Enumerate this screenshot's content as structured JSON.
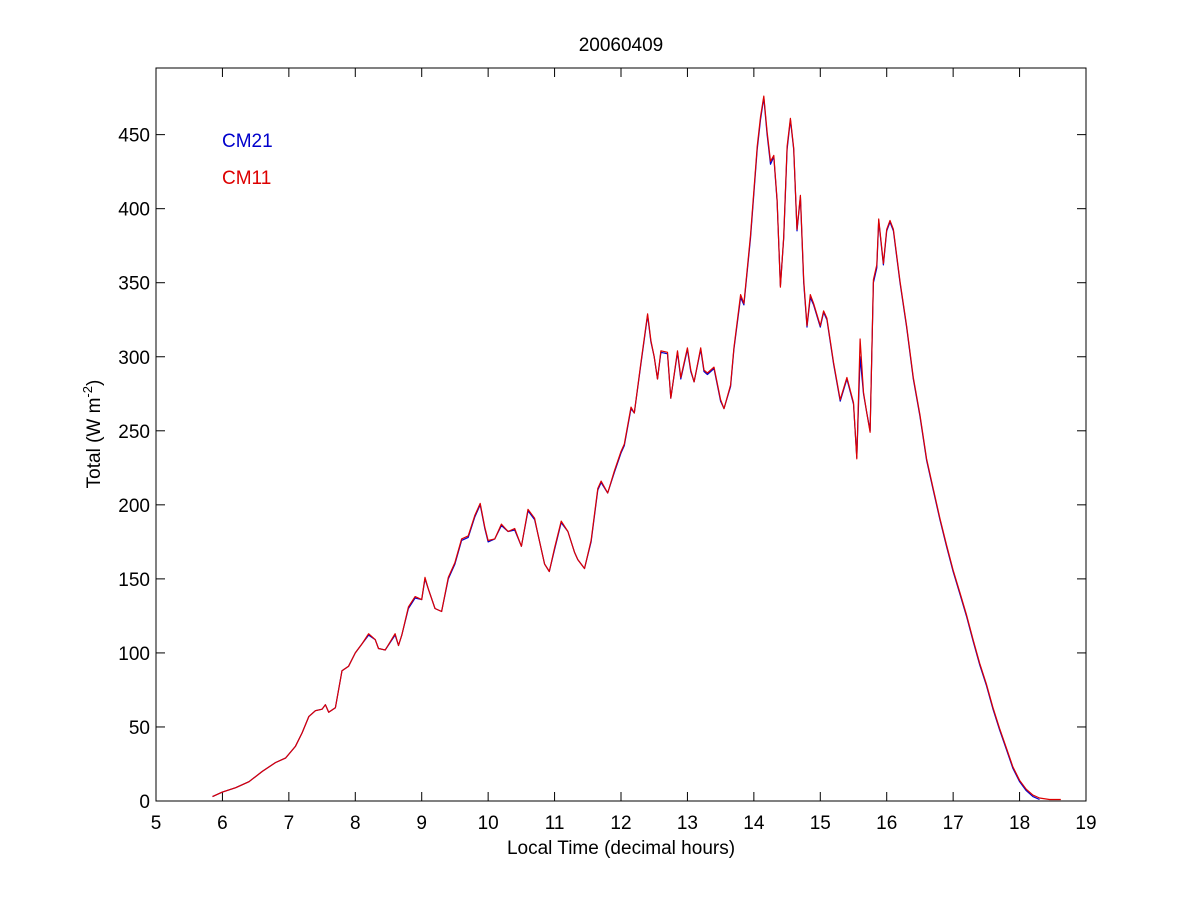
{
  "chart_data": {
    "type": "line",
    "title": "20060409",
    "xlabel": "Local Time (decimal hours)",
    "ylabel": "Total (W m",
    "ylabel_sup": "-2",
    "ylabel_suffix": ")",
    "xlim": [
      5,
      19
    ],
    "ylim": [
      0,
      495
    ],
    "xticks": [
      5,
      6,
      7,
      8,
      9,
      10,
      11,
      12,
      13,
      14,
      15,
      16,
      17,
      18,
      19
    ],
    "yticks": [
      0,
      50,
      100,
      150,
      200,
      250,
      300,
      350,
      400,
      450
    ],
    "grid": false,
    "legend_placement": "top-left",
    "series": [
      {
        "name": "CM21",
        "color": "#0000cc",
        "points": [
          [
            5.85,
            3
          ],
          [
            6.0,
            6
          ],
          [
            6.2,
            9
          ],
          [
            6.4,
            13
          ],
          [
            6.6,
            20
          ],
          [
            6.8,
            26
          ],
          [
            6.95,
            29
          ],
          [
            7.1,
            37
          ],
          [
            7.2,
            46
          ],
          [
            7.3,
            57
          ],
          [
            7.4,
            61
          ],
          [
            7.5,
            62
          ],
          [
            7.55,
            65
          ],
          [
            7.6,
            60
          ],
          [
            7.7,
            63
          ],
          [
            7.8,
            88
          ],
          [
            7.9,
            91
          ],
          [
            8.0,
            100
          ],
          [
            8.1,
            106
          ],
          [
            8.2,
            112
          ],
          [
            8.3,
            109
          ],
          [
            8.35,
            103
          ],
          [
            8.45,
            102
          ],
          [
            8.6,
            112
          ],
          [
            8.65,
            105
          ],
          [
            8.7,
            112
          ],
          [
            8.8,
            130
          ],
          [
            8.9,
            137
          ],
          [
            9.0,
            136
          ],
          [
            9.05,
            150
          ],
          [
            9.1,
            143
          ],
          [
            9.2,
            130
          ],
          [
            9.3,
            128
          ],
          [
            9.4,
            150
          ],
          [
            9.5,
            160
          ],
          [
            9.6,
            176
          ],
          [
            9.7,
            178
          ],
          [
            9.8,
            192
          ],
          [
            9.88,
            200
          ],
          [
            9.95,
            184
          ],
          [
            10.0,
            175
          ],
          [
            10.1,
            177
          ],
          [
            10.2,
            186
          ],
          [
            10.3,
            182
          ],
          [
            10.4,
            183
          ],
          [
            10.5,
            172
          ],
          [
            10.6,
            196
          ],
          [
            10.7,
            190
          ],
          [
            10.75,
            180
          ],
          [
            10.85,
            160
          ],
          [
            10.92,
            155
          ],
          [
            11.0,
            170
          ],
          [
            11.1,
            188
          ],
          [
            11.2,
            182
          ],
          [
            11.3,
            168
          ],
          [
            11.35,
            163
          ],
          [
            11.45,
            157
          ],
          [
            11.55,
            175
          ],
          [
            11.65,
            210
          ],
          [
            11.7,
            215
          ],
          [
            11.8,
            208
          ],
          [
            11.9,
            222
          ],
          [
            12.0,
            235
          ],
          [
            12.05,
            240
          ],
          [
            12.15,
            265
          ],
          [
            12.2,
            262
          ],
          [
            12.3,
            295
          ],
          [
            12.4,
            328
          ],
          [
            12.45,
            310
          ],
          [
            12.5,
            300
          ],
          [
            12.55,
            285
          ],
          [
            12.6,
            303
          ],
          [
            12.7,
            302
          ],
          [
            12.75,
            272
          ],
          [
            12.85,
            303
          ],
          [
            12.9,
            285
          ],
          [
            13.0,
            305
          ],
          [
            13.05,
            290
          ],
          [
            13.1,
            283
          ],
          [
            13.2,
            305
          ],
          [
            13.25,
            290
          ],
          [
            13.3,
            288
          ],
          [
            13.4,
            292
          ],
          [
            13.5,
            270
          ],
          [
            13.55,
            265
          ],
          [
            13.65,
            280
          ],
          [
            13.7,
            305
          ],
          [
            13.8,
            340
          ],
          [
            13.85,
            335
          ],
          [
            13.95,
            380
          ],
          [
            14.05,
            440
          ],
          [
            14.1,
            460
          ],
          [
            14.15,
            475
          ],
          [
            14.2,
            450
          ],
          [
            14.25,
            430
          ],
          [
            14.3,
            435
          ],
          [
            14.35,
            405
          ],
          [
            14.4,
            348
          ],
          [
            14.45,
            380
          ],
          [
            14.5,
            440
          ],
          [
            14.55,
            460
          ],
          [
            14.6,
            440
          ],
          [
            14.65,
            385
          ],
          [
            14.7,
            408
          ],
          [
            14.75,
            350
          ],
          [
            14.8,
            320
          ],
          [
            14.85,
            340
          ],
          [
            14.9,
            335
          ],
          [
            15.0,
            320
          ],
          [
            15.05,
            330
          ],
          [
            15.1,
            325
          ],
          [
            15.2,
            295
          ],
          [
            15.3,
            270
          ],
          [
            15.4,
            285
          ],
          [
            15.5,
            268
          ],
          [
            15.55,
            232
          ],
          [
            15.6,
            300
          ],
          [
            15.65,
            275
          ],
          [
            15.7,
            262
          ],
          [
            15.75,
            250
          ],
          [
            15.8,
            350
          ],
          [
            15.85,
            360
          ],
          [
            15.88,
            392
          ],
          [
            15.95,
            362
          ],
          [
            16.0,
            385
          ],
          [
            16.05,
            391
          ],
          [
            16.1,
            385
          ],
          [
            16.2,
            350
          ],
          [
            16.3,
            320
          ],
          [
            16.4,
            285
          ],
          [
            16.5,
            260
          ],
          [
            16.6,
            230
          ],
          [
            16.7,
            210
          ],
          [
            16.8,
            190
          ],
          [
            16.9,
            172
          ],
          [
            17.0,
            155
          ],
          [
            17.1,
            140
          ],
          [
            17.2,
            125
          ],
          [
            17.3,
            108
          ],
          [
            17.4,
            92
          ],
          [
            17.5,
            78
          ],
          [
            17.6,
            62
          ],
          [
            17.7,
            48
          ],
          [
            17.8,
            35
          ],
          [
            17.9,
            22
          ],
          [
            18.0,
            13
          ],
          [
            18.1,
            7
          ],
          [
            18.2,
            3
          ],
          [
            18.3,
            1
          ]
        ]
      },
      {
        "name": "CM11",
        "color": "#dd0000",
        "points": [
          [
            5.85,
            3
          ],
          [
            6.0,
            6
          ],
          [
            6.2,
            9
          ],
          [
            6.4,
            13
          ],
          [
            6.6,
            20
          ],
          [
            6.8,
            26
          ],
          [
            6.95,
            29
          ],
          [
            7.1,
            37
          ],
          [
            7.2,
            46
          ],
          [
            7.3,
            57
          ],
          [
            7.4,
            61
          ],
          [
            7.5,
            62
          ],
          [
            7.55,
            65
          ],
          [
            7.6,
            60
          ],
          [
            7.7,
            63
          ],
          [
            7.8,
            88
          ],
          [
            7.9,
            91
          ],
          [
            8.0,
            100
          ],
          [
            8.1,
            106
          ],
          [
            8.2,
            113
          ],
          [
            8.3,
            109
          ],
          [
            8.35,
            103
          ],
          [
            8.45,
            102
          ],
          [
            8.6,
            113
          ],
          [
            8.65,
            105
          ],
          [
            8.7,
            112
          ],
          [
            8.8,
            131
          ],
          [
            8.9,
            138
          ],
          [
            9.0,
            136
          ],
          [
            9.05,
            151
          ],
          [
            9.1,
            143
          ],
          [
            9.2,
            130
          ],
          [
            9.3,
            128
          ],
          [
            9.4,
            151
          ],
          [
            9.5,
            161
          ],
          [
            9.6,
            177
          ],
          [
            9.7,
            179
          ],
          [
            9.8,
            193
          ],
          [
            9.88,
            201
          ],
          [
            9.95,
            185
          ],
          [
            10.0,
            176
          ],
          [
            10.1,
            177
          ],
          [
            10.2,
            187
          ],
          [
            10.3,
            182
          ],
          [
            10.4,
            184
          ],
          [
            10.5,
            172
          ],
          [
            10.6,
            197
          ],
          [
            10.7,
            191
          ],
          [
            10.75,
            180
          ],
          [
            10.85,
            160
          ],
          [
            10.92,
            155
          ],
          [
            11.0,
            171
          ],
          [
            11.1,
            189
          ],
          [
            11.2,
            182
          ],
          [
            11.3,
            168
          ],
          [
            11.35,
            163
          ],
          [
            11.45,
            157
          ],
          [
            11.55,
            176
          ],
          [
            11.65,
            211
          ],
          [
            11.7,
            216
          ],
          [
            11.8,
            208
          ],
          [
            11.9,
            223
          ],
          [
            12.0,
            236
          ],
          [
            12.05,
            241
          ],
          [
            12.15,
            266
          ],
          [
            12.2,
            262
          ],
          [
            12.3,
            296
          ],
          [
            12.4,
            329
          ],
          [
            12.45,
            311
          ],
          [
            12.5,
            300
          ],
          [
            12.55,
            285
          ],
          [
            12.6,
            304
          ],
          [
            12.7,
            303
          ],
          [
            12.75,
            272
          ],
          [
            12.85,
            304
          ],
          [
            12.9,
            286
          ],
          [
            13.0,
            306
          ],
          [
            13.05,
            291
          ],
          [
            13.1,
            283
          ],
          [
            13.2,
            306
          ],
          [
            13.25,
            291
          ],
          [
            13.3,
            289
          ],
          [
            13.4,
            293
          ],
          [
            13.5,
            271
          ],
          [
            13.55,
            265
          ],
          [
            13.65,
            281
          ],
          [
            13.7,
            306
          ],
          [
            13.8,
            342
          ],
          [
            13.85,
            336
          ],
          [
            13.95,
            382
          ],
          [
            14.05,
            442
          ],
          [
            14.1,
            462
          ],
          [
            14.15,
            476
          ],
          [
            14.2,
            452
          ],
          [
            14.25,
            432
          ],
          [
            14.3,
            436
          ],
          [
            14.35,
            406
          ],
          [
            14.4,
            347
          ],
          [
            14.45,
            381
          ],
          [
            14.5,
            442
          ],
          [
            14.55,
            461
          ],
          [
            14.6,
            441
          ],
          [
            14.65,
            386
          ],
          [
            14.7,
            409
          ],
          [
            14.75,
            352
          ],
          [
            14.8,
            321
          ],
          [
            14.85,
            342
          ],
          [
            14.9,
            336
          ],
          [
            15.0,
            321
          ],
          [
            15.05,
            331
          ],
          [
            15.1,
            326
          ],
          [
            15.2,
            296
          ],
          [
            15.3,
            271
          ],
          [
            15.4,
            286
          ],
          [
            15.5,
            269
          ],
          [
            15.55,
            231
          ],
          [
            15.6,
            312
          ],
          [
            15.65,
            276
          ],
          [
            15.7,
            262
          ],
          [
            15.75,
            249
          ],
          [
            15.8,
            352
          ],
          [
            15.85,
            362
          ],
          [
            15.88,
            393
          ],
          [
            15.95,
            363
          ],
          [
            16.0,
            386
          ],
          [
            16.05,
            392
          ],
          [
            16.1,
            386
          ],
          [
            16.2,
            351
          ],
          [
            16.3,
            321
          ],
          [
            16.4,
            286
          ],
          [
            16.5,
            261
          ],
          [
            16.6,
            231
          ],
          [
            16.7,
            211
          ],
          [
            16.8,
            191
          ],
          [
            16.9,
            173
          ],
          [
            17.0,
            156
          ],
          [
            17.1,
            141
          ],
          [
            17.2,
            126
          ],
          [
            17.3,
            109
          ],
          [
            17.4,
            93
          ],
          [
            17.5,
            79
          ],
          [
            17.6,
            63
          ],
          [
            17.7,
            49
          ],
          [
            17.8,
            36
          ],
          [
            17.9,
            23
          ],
          [
            18.0,
            14
          ],
          [
            18.1,
            8
          ],
          [
            18.2,
            4
          ],
          [
            18.3,
            2
          ],
          [
            18.45,
            1
          ],
          [
            18.62,
            1
          ]
        ]
      }
    ]
  }
}
